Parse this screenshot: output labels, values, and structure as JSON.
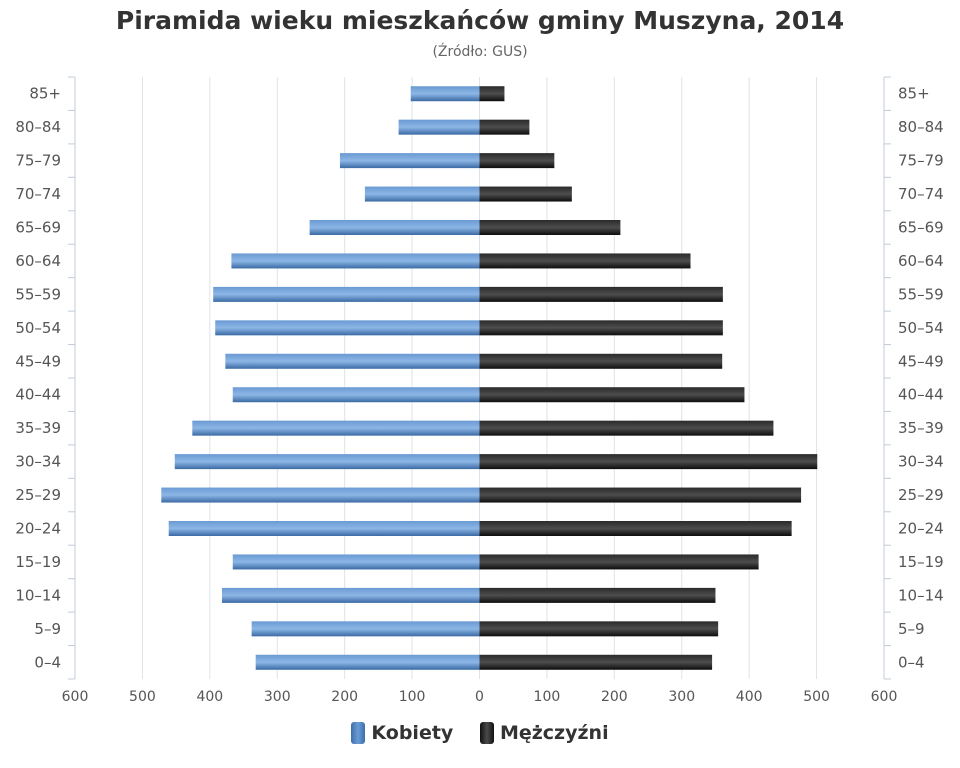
{
  "title": "Piramida wieku mieszkańców gminy Muszyna, 2014",
  "subtitle": "(Źródło: GUS)",
  "colors": {
    "women": "#4f82bd",
    "women_light": "#7aa7dc",
    "women_dark": "#3a6aa4",
    "men": "#1a1a1a",
    "men_light": "#555555",
    "grid": "#dde3ea",
    "axis_text": "#555555"
  },
  "legend": {
    "women_label": "Kobiety",
    "men_label": "Mężczyźni"
  },
  "chart_data": {
    "type": "bar",
    "orientation": "horizontal",
    "title": "Piramida wieku mieszkańców gminy Muszyna, 2014",
    "subtitle": "(Źródło: GUS)",
    "categories": [
      "85+",
      "80–84",
      "75–79",
      "70–74",
      "65–69",
      "60–64",
      "55–59",
      "50–54",
      "45–49",
      "40–44",
      "35–39",
      "30–34",
      "25–29",
      "20–24",
      "15–19",
      "10–14",
      "5–9",
      "0–4"
    ],
    "series": [
      {
        "name": "Kobiety",
        "values": [
          102,
          120,
          207,
          170,
          252,
          368,
          395,
          392,
          377,
          366,
          426,
          452,
          472,
          461,
          366,
          382,
          338,
          332
        ]
      },
      {
        "name": "Mężczyźni",
        "values": [
          37,
          74,
          111,
          137,
          209,
          313,
          361,
          361,
          360,
          393,
          436,
          501,
          477,
          463,
          414,
          350,
          354,
          345
        ]
      }
    ],
    "xlim": [
      -600,
      600
    ],
    "x_ticks": [
      -600,
      -500,
      -400,
      -300,
      -200,
      -100,
      0,
      100,
      200,
      300,
      400,
      500,
      600
    ],
    "x_tick_labels": [
      "600",
      "500",
      "400",
      "300",
      "200",
      "100",
      "0",
      "100",
      "200",
      "300",
      "400",
      "500",
      "600"
    ],
    "xlabel": "",
    "ylabel": "",
    "grid": true,
    "legend_position": "bottom"
  }
}
